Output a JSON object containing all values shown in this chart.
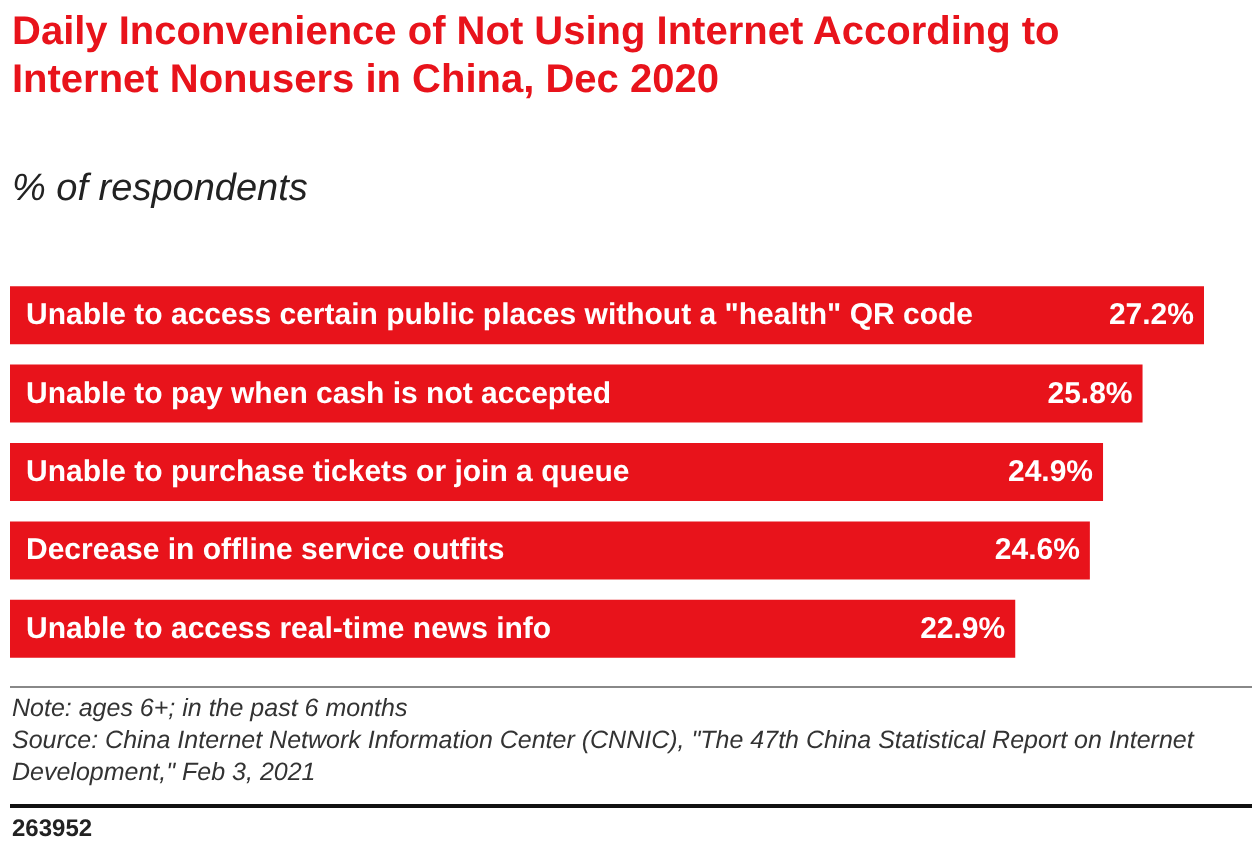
{
  "chart_data": {
    "type": "bar",
    "orientation": "horizontal",
    "title": "Daily Inconvenience of Not Using Internet According to Internet Nonusers in China, Dec 2020",
    "subtitle": "% of respondents",
    "categories": [
      "Unable to access certain public places without a \"health\" QR code",
      "Unable to pay when cash is not accepted",
      "Unable to purchase tickets or join a queue",
      "Decrease in offline service outfits",
      "Unable to access real-time news info"
    ],
    "values": [
      27.2,
      25.8,
      24.9,
      24.6,
      22.9
    ],
    "value_labels": [
      "27.2%",
      "25.8%",
      "24.9%",
      "24.6%",
      "22.9%"
    ],
    "color": "#e8131b",
    "annotations": [
      "Note: ages 6+; in the past 6 months",
      "Source: China Internet Network Information Center (CNNIC), \"The 47th China Statistical Report on Internet Development,\" Feb 3, 2021",
      "263952"
    ]
  }
}
